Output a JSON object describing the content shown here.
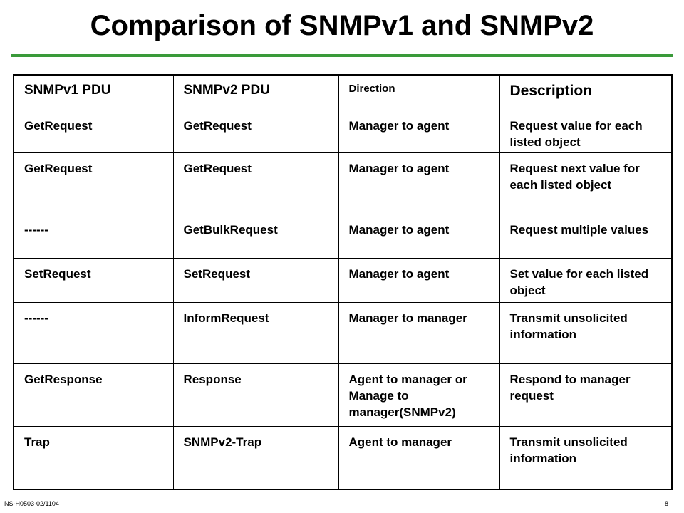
{
  "title": "Comparison of SNMPv1 and SNMPv2",
  "table": {
    "headers": [
      "SNMPv1 PDU",
      "SNMPv2 PDU",
      "Direction",
      "Description"
    ],
    "rows": [
      [
        "GetRequest",
        "GetRequest",
        "Manager to agent",
        "Request value for each listed object"
      ],
      [
        "GetRequest",
        "GetRequest",
        "Manager to agent",
        "Request next value for each listed object"
      ],
      [
        "------",
        "GetBulkRequest",
        "Manager to agent",
        "Request multiple values"
      ],
      [
        "SetRequest",
        "SetRequest",
        "Manager to agent",
        "Set value for each listed object"
      ],
      [
        "------",
        "InformRequest",
        "Manager to manager",
        "Transmit unsolicited information"
      ],
      [
        "GetResponse",
        "Response",
        "Agent to manager or Manage  to manager(SNMPv2)",
        "Respond to manager request"
      ],
      [
        "Trap",
        "SNMPv2-Trap",
        "Agent to manager",
        "Transmit unsolicited information"
      ]
    ]
  },
  "footer": {
    "left": "NS-H0503-02/1104",
    "right": "8"
  },
  "colors": {
    "title_rule": "#3a9a3a"
  }
}
